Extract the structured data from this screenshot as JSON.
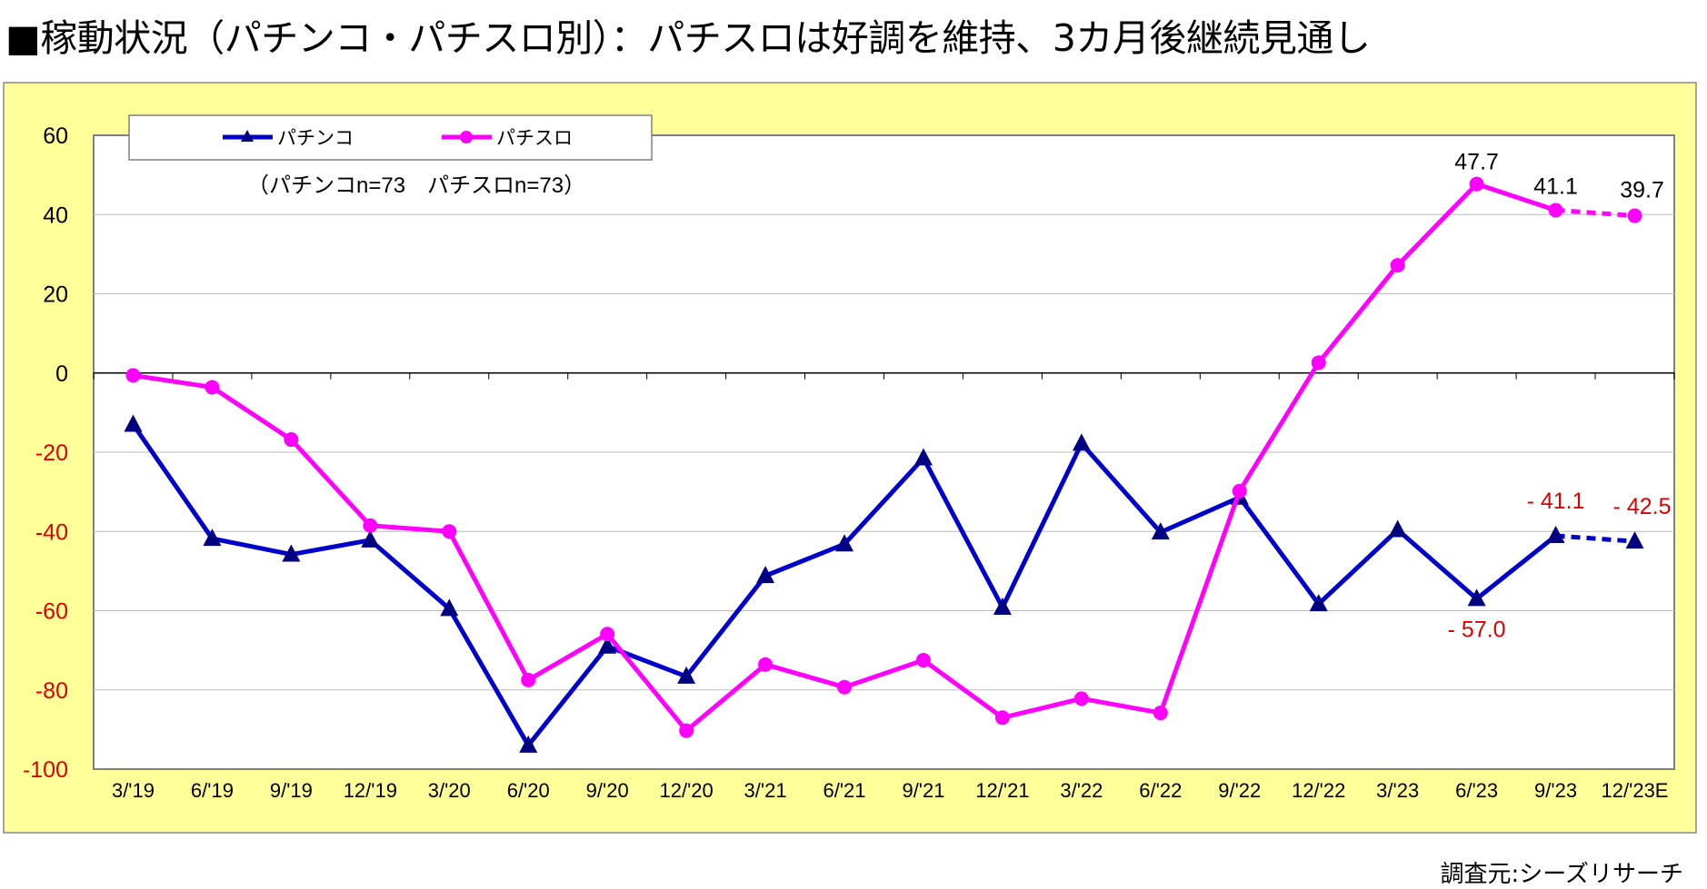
{
  "title": "■稼動状況（パチンコ・パチスロ別）：パチスロは好調を維持、3カ月後継続見通し",
  "source": "調査元:シーズリサーチ",
  "chart_data": {
    "type": "line",
    "title": "",
    "xlabel": "",
    "ylabel": "",
    "ylim": [
      -100,
      60
    ],
    "yticks": [
      60,
      40,
      20,
      0,
      -20,
      -40,
      -60,
      -80,
      -100
    ],
    "grid": true,
    "legend_position": "top-left",
    "note": "（パチンコn=73　パチスロn=73）",
    "background_color": "#FFFF99",
    "categories": [
      "3/'19",
      "6/'19",
      "9/'19",
      "12/'19",
      "3/'20",
      "6/'20",
      "9/'20",
      "12/'20",
      "3/'21",
      "6/'21",
      "9/'21",
      "12/'21",
      "3/'22",
      "6/'22",
      "9/'22",
      "12/'22",
      "3/'23",
      "6/'23",
      "9/'23",
      "12/'23E"
    ],
    "series": [
      {
        "name": "パチンコ",
        "color": "#0000CC",
        "marker": "triangle",
        "marker_color": "#000080",
        "values": [
          -13.0,
          -41.8,
          -45.8,
          -42.2,
          -59.5,
          -94.0,
          -69.0,
          -76.6,
          -51.2,
          -43.2,
          -21.5,
          -59.2,
          -17.8,
          -40.2,
          -31.4,
          -58.3,
          -39.6,
          -57.0,
          -41.1,
          -42.5
        ],
        "forecast_from_index": 18,
        "labels": [
          {
            "index": 17,
            "text": "- 57.0"
          },
          {
            "index": 18,
            "text": "- 41.1"
          },
          {
            "index": 19,
            "text": "- 42.5"
          }
        ],
        "label_color": "#DD0000"
      },
      {
        "name": "パチスロ",
        "color": "#FF00FF",
        "marker": "circle",
        "marker_color": "#FF00FF",
        "values": [
          -0.6,
          -3.6,
          -16.8,
          -38.5,
          -40.0,
          -77.5,
          -65.9,
          -90.3,
          -73.6,
          -79.3,
          -72.5,
          -87.0,
          -82.2,
          -85.8,
          -29.8,
          2.6,
          27.2,
          47.7,
          41.1,
          39.7
        ],
        "forecast_from_index": 18,
        "labels": [
          {
            "index": 17,
            "text": "47.7"
          },
          {
            "index": 18,
            "text": "41.1"
          },
          {
            "index": 19,
            "text": "39.7"
          }
        ],
        "label_color": "#000000"
      }
    ]
  }
}
